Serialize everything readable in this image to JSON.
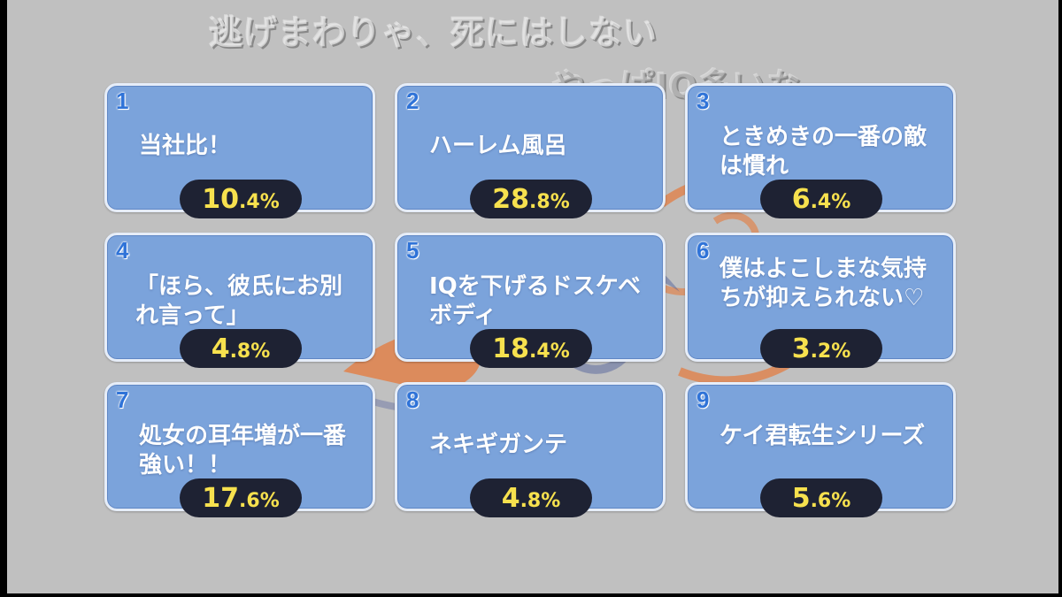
{
  "overlay": {
    "line1": "逃げまわりゃ、死にはしない",
    "line2": "やっぱIQ多いな"
  },
  "colors": {
    "background": "#c0c0c0",
    "card": "#7ba3db",
    "number": "#2f73d8",
    "pill": "#1e2233",
    "percent": "#f7e14e"
  },
  "choices": [
    {
      "number": "1",
      "text": "当社比！",
      "pct_int": "10",
      "pct_dec": ".4",
      "pct_sym": "%"
    },
    {
      "number": "2",
      "text": "ハーレム風呂",
      "pct_int": "28",
      "pct_dec": ".8",
      "pct_sym": "%"
    },
    {
      "number": "3",
      "text": "ときめきの一番の敵は慣れ",
      "pct_int": "6",
      "pct_dec": ".4",
      "pct_sym": "%"
    },
    {
      "number": "4",
      "text": "「ほら、彼氏にお別れ言って」",
      "pct_int": "4",
      "pct_dec": ".8",
      "pct_sym": "%"
    },
    {
      "number": "5",
      "text": "IQを下げるドスケベボディ",
      "pct_int": "18",
      "pct_dec": ".4",
      "pct_sym": "%"
    },
    {
      "number": "6",
      "text": "僕はよこしまな気持ちが抑えられない♡",
      "pct_int": "3",
      "pct_dec": ".2",
      "pct_sym": "%"
    },
    {
      "number": "7",
      "text": "処女の耳年増が一番強い！！",
      "pct_int": "17",
      "pct_dec": ".6",
      "pct_sym": "%"
    },
    {
      "number": "8",
      "text": "ネキギガンテ",
      "pct_int": "4",
      "pct_dec": ".8",
      "pct_sym": "%"
    },
    {
      "number": "9",
      "text": "ケイ君転生シリーズ",
      "pct_int": "5",
      "pct_dec": ".6",
      "pct_sym": "%"
    }
  ]
}
